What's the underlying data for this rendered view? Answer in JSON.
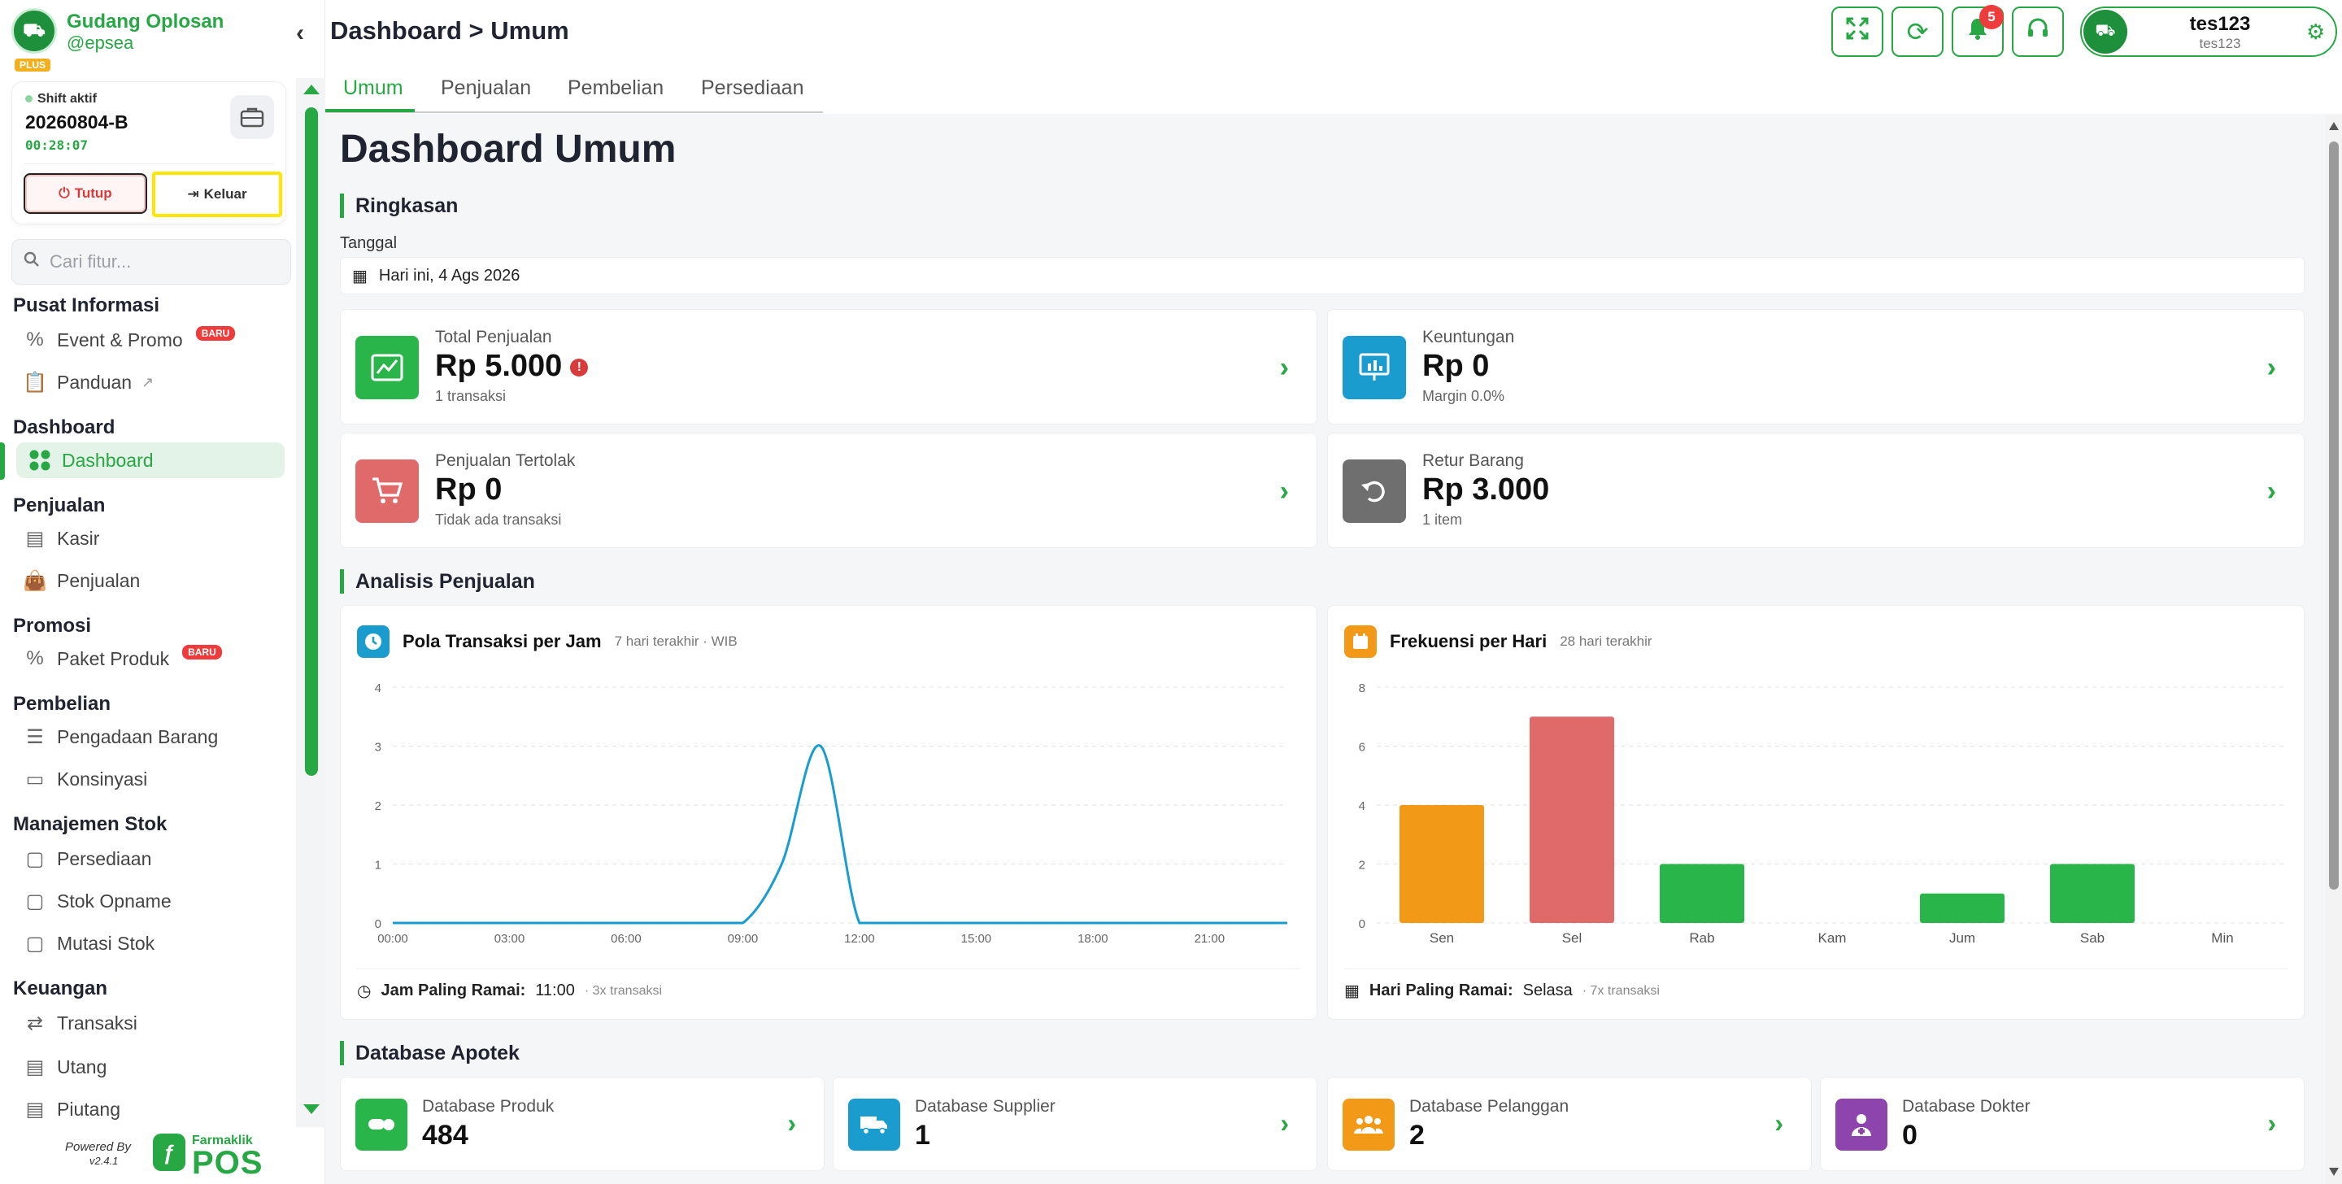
{
  "brand": {
    "name": "Gudang Oplosan",
    "user": "@epsea",
    "plan": "PLUS"
  },
  "shift": {
    "label": "Shift aktif",
    "code": "20260804-B",
    "timer": "00:28:07",
    "close_label": "Tutup",
    "exit_label": "Keluar"
  },
  "search": {
    "placeholder": "Cari fitur..."
  },
  "nav": {
    "pusat_informasi": {
      "title": "Pusat Informasi",
      "event": "Event & Promo",
      "panduan": "Panduan",
      "badge": "BARU"
    },
    "dashboard": {
      "title": "Dashboard",
      "item": "Dashboard"
    },
    "penjualan": {
      "title": "Penjualan",
      "kasir": "Kasir",
      "penjualan": "Penjualan"
    },
    "promosi": {
      "title": "Promosi",
      "paket": "Paket Produk",
      "badge": "BARU"
    },
    "pembelian": {
      "title": "Pembelian",
      "pengadaan": "Pengadaan Barang",
      "konsinyasi": "Konsinyasi"
    },
    "stok": {
      "title": "Manajemen Stok",
      "persediaan": "Persediaan",
      "opname": "Stok Opname",
      "mutasi": "Mutasi Stok"
    },
    "keuangan": {
      "title": "Keuangan",
      "transaksi": "Transaksi",
      "utang": "Utang",
      "piutang": "Piutang"
    }
  },
  "footer": {
    "powered": "Powered By",
    "version": "v2.4.1",
    "brand_small": "Farmaklik",
    "brand_big": "POS"
  },
  "topbar": {
    "breadcrumb": "Dashboard > Umum",
    "notif_count": "5",
    "user_name": "tes123",
    "user_sub": "tes123"
  },
  "tabs": [
    "Umum",
    "Penjualan",
    "Pembelian",
    "Persediaan"
  ],
  "page": {
    "title": "Dashboard Umum"
  },
  "ringkasan": {
    "title": "Ringkasan",
    "date_label": "Tanggal",
    "date_value": "Hari ini, 4 Ags 2026",
    "total": {
      "label": "Total Penjualan",
      "value": "Rp 5.000",
      "sub": "1 transaksi",
      "info": "!"
    },
    "keuntungan": {
      "label": "Keuntungan",
      "value": "Rp 0",
      "sub": "Margin 0.0%"
    },
    "tertolak": {
      "label": "Penjualan Tertolak",
      "value": "Rp 0",
      "sub": "Tidak ada transaksi"
    },
    "retur": {
      "label": "Retur Barang",
      "value": "Rp 3.000",
      "sub": "1 item"
    }
  },
  "analisis": {
    "title": "Analisis Penjualan",
    "pola": {
      "title": "Pola Transaksi per Jam",
      "sub": "7 hari terakhir · WIB",
      "foot_label": "Jam Paling Ramai:",
      "foot_value": "11:00",
      "foot_small": "· 3x transaksi"
    },
    "frekuensi": {
      "title": "Frekuensi per Hari",
      "sub": "28 hari terakhir",
      "foot_label": "Hari Paling Ramai:",
      "foot_value": "Selasa",
      "foot_small": "· 7x transaksi"
    }
  },
  "chart_data": [
    {
      "type": "line",
      "title": "Pola Transaksi per Jam",
      "x": [
        "00:00",
        "01:00",
        "02:00",
        "03:00",
        "04:00",
        "05:00",
        "06:00",
        "07:00",
        "08:00",
        "09:00",
        "10:00",
        "11:00",
        "12:00",
        "13:00",
        "14:00",
        "15:00",
        "16:00",
        "17:00",
        "18:00",
        "19:00",
        "20:00",
        "21:00",
        "22:00",
        "23:00"
      ],
      "x_ticks": [
        "00:00",
        "03:00",
        "06:00",
        "09:00",
        "12:00",
        "15:00",
        "18:00",
        "21:00"
      ],
      "y": [
        0,
        0,
        0,
        0,
        0,
        0,
        0,
        0,
        0,
        0,
        1,
        3,
        0,
        0,
        0,
        0,
        0,
        0,
        0,
        0,
        0,
        0,
        0,
        0
      ],
      "ylim": [
        0,
        4
      ],
      "y_ticks": [
        0,
        1,
        2,
        3,
        4
      ],
      "grid": true,
      "color": "#1a9ccf"
    },
    {
      "type": "bar",
      "title": "Frekuensi per Hari",
      "categories": [
        "Sen",
        "Sel",
        "Rab",
        "Kam",
        "Jum",
        "Sab",
        "Min"
      ],
      "values": [
        4,
        7,
        2,
        0,
        1,
        2,
        0
      ],
      "colors": [
        "#f29a18",
        "#e06a6a",
        "#2ab54a",
        "#2ab54a",
        "#2ab54a",
        "#2ab54a",
        "#2ab54a"
      ],
      "ylim": [
        0,
        8
      ],
      "y_ticks": [
        0,
        2,
        4,
        6,
        8
      ],
      "grid": true
    }
  ],
  "database": {
    "title": "Database Apotek",
    "produk": {
      "label": "Database Produk",
      "value": "484"
    },
    "supplier": {
      "label": "Database Supplier",
      "value": "1"
    },
    "pelanggan": {
      "label": "Database Pelanggan",
      "value": "2"
    },
    "dokter": {
      "label": "Database Dokter",
      "value": "0"
    }
  },
  "colors": {
    "accent": "#28a745",
    "danger": "#d93b3b"
  }
}
